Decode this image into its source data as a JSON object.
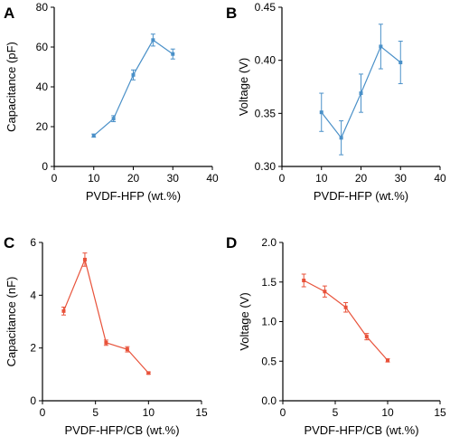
{
  "chart_data": [
    {
      "panel": "A",
      "type": "line",
      "xlabel": "PVDF-HFP (wt.%)",
      "ylabel": "Capacitance (pF)",
      "xlim": [
        0,
        40
      ],
      "ylim": [
        0,
        80
      ],
      "xticks": [
        0,
        10,
        20,
        30,
        40
      ],
      "yticks": [
        0,
        20,
        40,
        60,
        80
      ],
      "color": "#4a90c8",
      "series": [
        {
          "x": [
            10,
            15,
            20,
            25,
            30
          ],
          "y": [
            15.5,
            24,
            46,
            63.5,
            56.5
          ],
          "err": [
            0.8,
            1.5,
            2.5,
            3,
            2.5
          ]
        }
      ]
    },
    {
      "panel": "B",
      "type": "line",
      "xlabel": "PVDF-HFP (wt.%)",
      "ylabel": "Voltage (V)",
      "xlim": [
        0,
        40
      ],
      "ylim": [
        0.3,
        0.45
      ],
      "xticks": [
        0,
        10,
        20,
        30,
        40
      ],
      "yticks": [
        0.3,
        0.35,
        0.4,
        0.45
      ],
      "ytick_labels": [
        "0.30",
        "0.35",
        "0.40",
        "0.45"
      ],
      "color": "#4a90c8",
      "series": [
        {
          "x": [
            10,
            15,
            20,
            25,
            30
          ],
          "y": [
            0.351,
            0.327,
            0.369,
            0.413,
            0.398
          ],
          "err": [
            0.018,
            0.016,
            0.018,
            0.021,
            0.02
          ]
        }
      ]
    },
    {
      "panel": "C",
      "type": "line",
      "xlabel": "PVDF-HFP/CB (wt.%)",
      "ylabel": "Capacitance (nF)",
      "xlim": [
        0,
        15
      ],
      "ylim": [
        0,
        6
      ],
      "xticks": [
        0,
        5,
        10,
        15
      ],
      "yticks": [
        0,
        2,
        4,
        6
      ],
      "color": "#e8523a",
      "series": [
        {
          "x": [
            2,
            4,
            6,
            8,
            10
          ],
          "y": [
            3.4,
            5.35,
            2.2,
            1.95,
            1.05
          ],
          "err": [
            0.15,
            0.25,
            0.1,
            0.1,
            0.04
          ]
        }
      ]
    },
    {
      "panel": "D",
      "type": "line",
      "xlabel": "PVDF-HFP/CB (wt.%)",
      "ylabel": "Voltage (V)",
      "xlim": [
        0,
        15
      ],
      "ylim": [
        0,
        2.0
      ],
      "xticks": [
        0,
        5,
        10,
        15
      ],
      "yticks": [
        0,
        0.5,
        1.0,
        1.5,
        2.0
      ],
      "ytick_labels": [
        "0.0",
        "0.5",
        "1.0",
        "1.5",
        "2.0"
      ],
      "color": "#e8523a",
      "series": [
        {
          "x": [
            2,
            4,
            6,
            8,
            10
          ],
          "y": [
            1.52,
            1.38,
            1.18,
            0.81,
            0.51
          ],
          "err": [
            0.08,
            0.07,
            0.06,
            0.04,
            0.02
          ]
        }
      ]
    }
  ]
}
